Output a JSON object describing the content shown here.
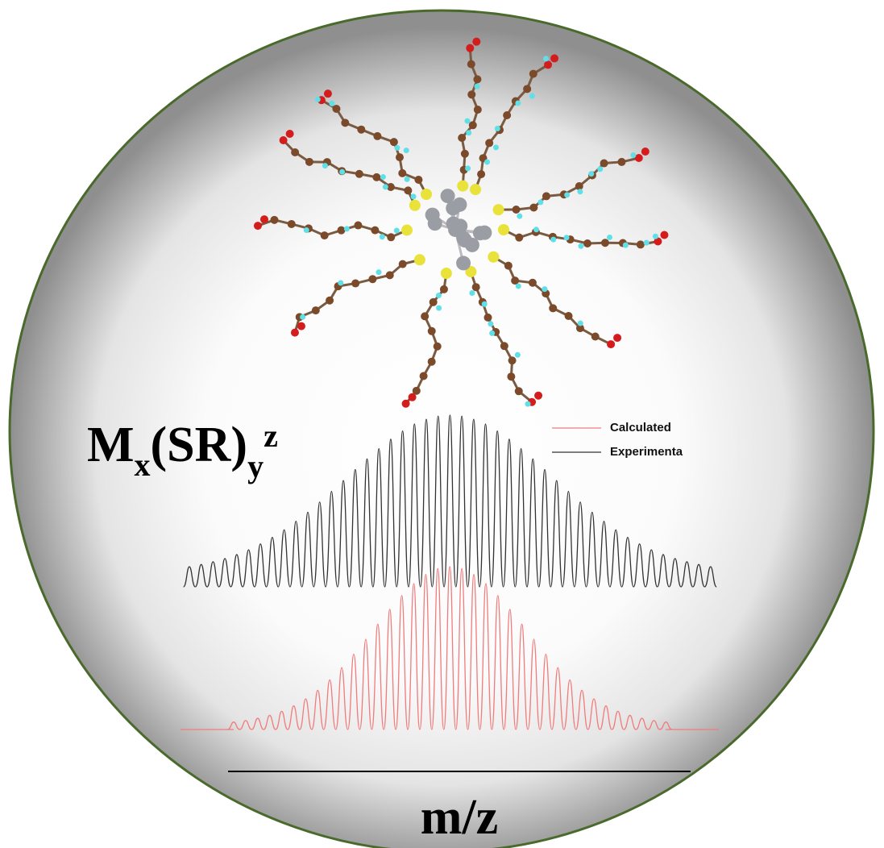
{
  "chart_data": {
    "type": "line",
    "annotation": {
      "main": "M",
      "sub1": "x",
      "mid": "(SR)",
      "sub2": "y",
      "sup": "z"
    },
    "xlabel": "m/z",
    "ylim": [
      0,
      100
    ],
    "series": [
      {
        "name": "Calculated",
        "color": "#f07c7c",
        "values": [
          4.6,
          5.5,
          6.9,
          8.7,
          11.2,
          14.5,
          18.8,
          24.1,
          30.5,
          38,
          46.3,
          55.4,
          64.7,
          73.8,
          82.3,
          89.6,
          95.2,
          98.8,
          100,
          98.8,
          95.2,
          89.6,
          82.3,
          73.8,
          64.7,
          55.4,
          46.3,
          38,
          30.5,
          24.1,
          18.8,
          14.5,
          11.2,
          8.7,
          6.9,
          5.5,
          4.6
        ]
      },
      {
        "name": "Experimenta",
        "color": "#333333",
        "values": [
          11.7,
          13,
          14.6,
          16.5,
          18.8,
          21.6,
          25,
          28.8,
          33.2,
          38.2,
          43.5,
          49.4,
          55.6,
          61.9,
          68.3,
          74.5,
          80.5,
          86,
          90.8,
          94.8,
          97.6,
          99.4,
          100,
          99.4,
          97.6,
          94.8,
          90.8,
          86,
          80.5,
          74.5,
          68.3,
          61.9,
          55.6,
          49.4,
          43.5,
          38.2,
          33.2,
          28.8,
          25,
          21.6,
          18.8,
          16.5,
          14.6,
          13,
          11.7
        ]
      }
    ]
  }
}
